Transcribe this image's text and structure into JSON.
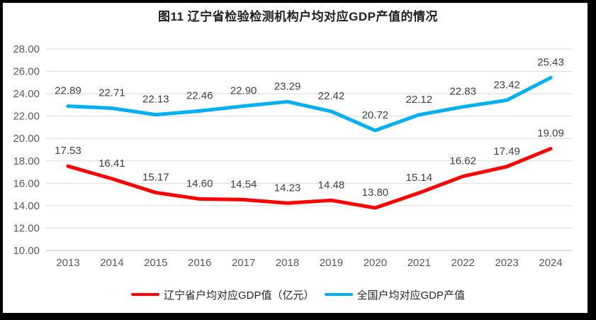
{
  "title": "图11 辽宁省检验检测机构户均对应GDP产值的情况",
  "chart_data": {
    "type": "line",
    "categories": [
      "2013",
      "2014",
      "2015",
      "2016",
      "2017",
      "2018",
      "2019",
      "2020",
      "2021",
      "2022",
      "2023",
      "2024"
    ],
    "series": [
      {
        "name": "辽宁省户均对应GDP值（亿元）",
        "color": "#FF0000",
        "values": [
          17.53,
          16.41,
          15.17,
          14.6,
          14.54,
          14.23,
          14.48,
          13.8,
          15.14,
          16.62,
          17.49,
          19.09
        ]
      },
      {
        "name": "全国户均对应GDP产值",
        "color": "#00B0F0",
        "values": [
          22.89,
          22.71,
          22.13,
          22.46,
          22.9,
          23.29,
          22.42,
          20.72,
          22.12,
          22.83,
          23.42,
          25.43
        ]
      }
    ],
    "ylim": [
      10,
      28
    ],
    "ytick_step": 2,
    "ytick_labels": [
      "10.00",
      "12.00",
      "14.00",
      "16.00",
      "18.00",
      "20.00",
      "22.00",
      "24.00",
      "26.00",
      "28.00"
    ],
    "grid": true,
    "data_labels": true,
    "legend_position": "bottom",
    "xlabel": "",
    "ylabel": ""
  },
  "colors": {
    "grid": "#D9D9D9",
    "axis_line": "#BFBFBF",
    "tick_text": "#595959",
    "data_label_text": "#404040",
    "frame": "#000000",
    "background": "#FFFFFF"
  }
}
